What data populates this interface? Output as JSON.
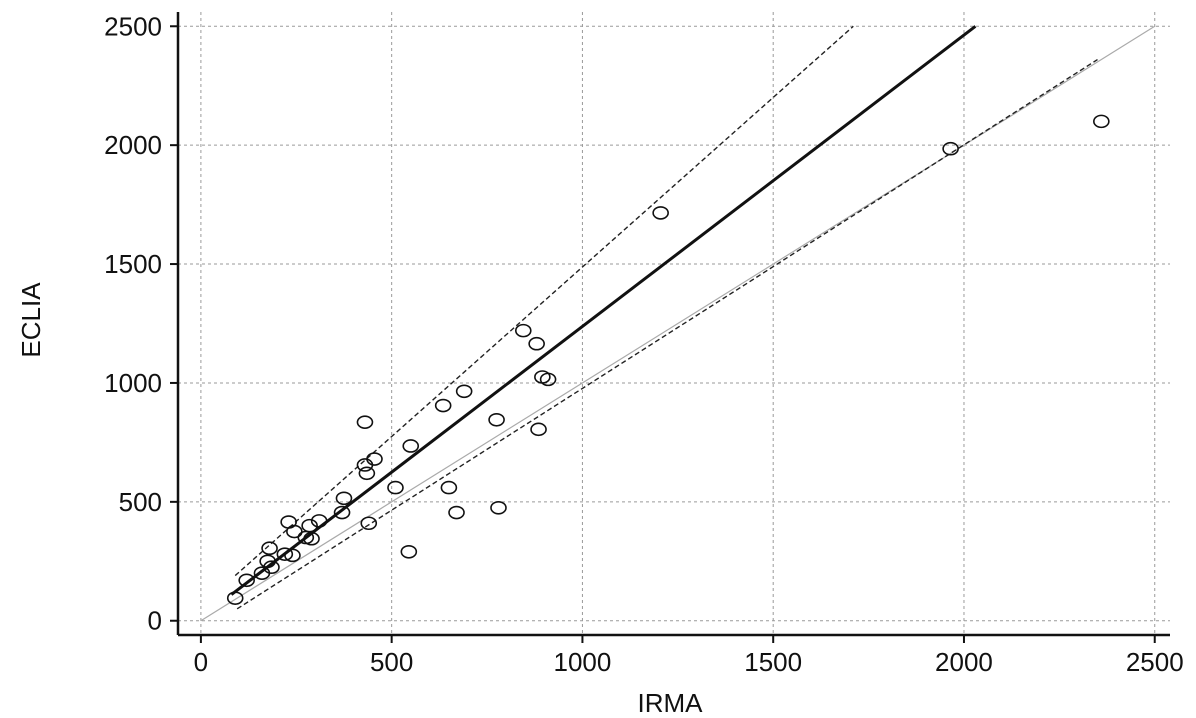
{
  "chart_data": {
    "type": "scatter",
    "title": "",
    "xlabel": "IRMA",
    "ylabel": "ECLIA",
    "xlim": [
      -60,
      2540
    ],
    "ylim": [
      -60,
      2560
    ],
    "x_ticks": [
      0,
      500,
      1000,
      1500,
      2000,
      2500
    ],
    "y_ticks": [
      0,
      500,
      1000,
      1500,
      2000,
      2500
    ],
    "x_tick_labels": [
      "0",
      "500",
      "1000",
      "1500",
      "2000",
      "2500"
    ],
    "y_tick_labels": [
      "0",
      "500",
      "1000",
      "1500",
      "2000",
      "2500"
    ],
    "grid": true,
    "legend": "none",
    "points": [
      {
        "x": 90,
        "y": 95
      },
      {
        "x": 120,
        "y": 170
      },
      {
        "x": 160,
        "y": 200
      },
      {
        "x": 175,
        "y": 250
      },
      {
        "x": 185,
        "y": 225
      },
      {
        "x": 180,
        "y": 305
      },
      {
        "x": 220,
        "y": 280
      },
      {
        "x": 230,
        "y": 415
      },
      {
        "x": 240,
        "y": 275
      },
      {
        "x": 245,
        "y": 375
      },
      {
        "x": 275,
        "y": 350
      },
      {
        "x": 285,
        "y": 400
      },
      {
        "x": 290,
        "y": 345
      },
      {
        "x": 310,
        "y": 420
      },
      {
        "x": 370,
        "y": 455
      },
      {
        "x": 375,
        "y": 515
      },
      {
        "x": 430,
        "y": 835
      },
      {
        "x": 430,
        "y": 655
      },
      {
        "x": 435,
        "y": 620
      },
      {
        "x": 440,
        "y": 410
      },
      {
        "x": 455,
        "y": 680
      },
      {
        "x": 510,
        "y": 560
      },
      {
        "x": 545,
        "y": 290
      },
      {
        "x": 550,
        "y": 735
      },
      {
        "x": 635,
        "y": 905
      },
      {
        "x": 650,
        "y": 560
      },
      {
        "x": 670,
        "y": 455
      },
      {
        "x": 690,
        "y": 965
      },
      {
        "x": 775,
        "y": 845
      },
      {
        "x": 780,
        "y": 475
      },
      {
        "x": 845,
        "y": 1220
      },
      {
        "x": 880,
        "y": 1165
      },
      {
        "x": 885,
        "y": 805
      },
      {
        "x": 895,
        "y": 1025
      },
      {
        "x": 910,
        "y": 1015
      },
      {
        "x": 1205,
        "y": 1715
      },
      {
        "x": 1965,
        "y": 1985
      },
      {
        "x": 2360,
        "y": 2100
      }
    ],
    "lines": [
      {
        "role": "identity",
        "style": "thin solid grey",
        "x": [
          0,
          2500
        ],
        "y": [
          0,
          2500
        ]
      },
      {
        "role": "regression",
        "style": "thick solid black",
        "x": [
          80,
          2030
        ],
        "y": [
          110,
          2500
        ]
      },
      {
        "role": "upper-bound",
        "style": "dashed",
        "x": [
          90,
          1710
        ],
        "y": [
          190,
          2500
        ]
      },
      {
        "role": "lower-bound",
        "style": "dashed",
        "x": [
          95,
          2350
        ],
        "y": [
          50,
          2360
        ]
      }
    ]
  }
}
